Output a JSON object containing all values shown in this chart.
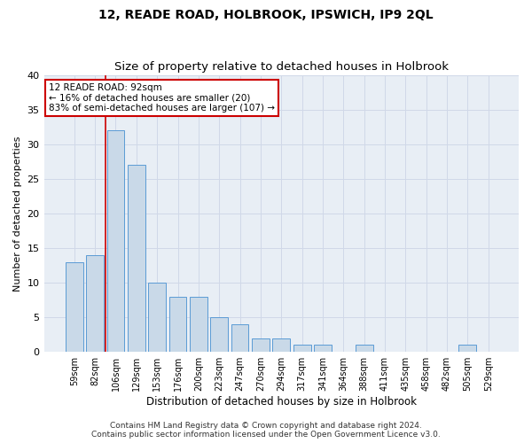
{
  "title": "12, READE ROAD, HOLBROOK, IPSWICH, IP9 2QL",
  "subtitle": "Size of property relative to detached houses in Holbrook",
  "xlabel": "Distribution of detached houses by size in Holbrook",
  "ylabel": "Number of detached properties",
  "bar_labels": [
    "59sqm",
    "82sqm",
    "106sqm",
    "129sqm",
    "153sqm",
    "176sqm",
    "200sqm",
    "223sqm",
    "247sqm",
    "270sqm",
    "294sqm",
    "317sqm",
    "341sqm",
    "364sqm",
    "388sqm",
    "411sqm",
    "435sqm",
    "458sqm",
    "482sqm",
    "505sqm",
    "529sqm"
  ],
  "bar_values": [
    13,
    14,
    32,
    27,
    10,
    8,
    8,
    5,
    4,
    2,
    2,
    1,
    1,
    0,
    1,
    0,
    0,
    0,
    0,
    1,
    0
  ],
  "bar_color": "#c9d9e8",
  "bar_edge_color": "#5b9bd5",
  "property_label": "12 READE ROAD: 92sqm",
  "annotation_line1": "← 16% of detached houses are smaller (20)",
  "annotation_line2": "83% of semi-detached houses are larger (107) →",
  "annotation_box_color": "#ffffff",
  "annotation_box_edge_color": "#cc0000",
  "vline_color": "#cc0000",
  "vline_x_index": 1.5,
  "grid_color": "#d0d8e8",
  "bg_color": "#e8eef5",
  "ylim": [
    0,
    40
  ],
  "yticks": [
    0,
    5,
    10,
    15,
    20,
    25,
    30,
    35,
    40
  ],
  "footer_line1": "Contains HM Land Registry data © Crown copyright and database right 2024.",
  "footer_line2": "Contains public sector information licensed under the Open Government Licence v3.0."
}
